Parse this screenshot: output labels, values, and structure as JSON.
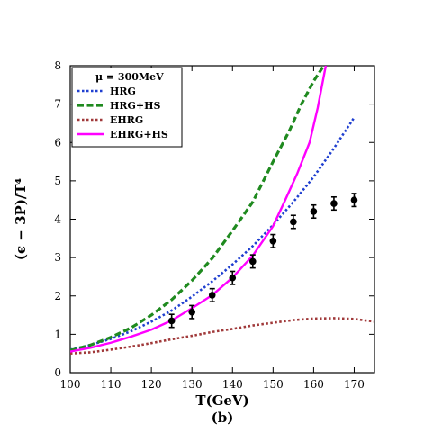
{
  "chart_data": {
    "type": "line",
    "xlabel": "T(GeV)",
    "ylabel": "(ϵ − 3P)/T⁴",
    "panel_label": "(b)",
    "legend_header": "μ = 300MeV",
    "xlim": [
      100,
      175
    ],
    "ylim": [
      0,
      8
    ],
    "x_ticks": [
      100,
      110,
      120,
      130,
      140,
      150,
      160,
      170
    ],
    "y_ticks": [
      0,
      1,
      2,
      3,
      4,
      5,
      6,
      7,
      8
    ],
    "legend_position": "top-left",
    "series": [
      {
        "name": "HRG",
        "style": "dotted",
        "color": "#1f3fd0",
        "x": [
          100,
          105,
          110,
          115,
          120,
          125,
          130,
          135,
          140,
          145,
          150,
          155,
          160,
          165,
          170
        ],
        "y": [
          0.6,
          0.72,
          0.88,
          1.08,
          1.33,
          1.62,
          1.98,
          2.38,
          2.82,
          3.3,
          3.85,
          4.45,
          5.1,
          5.85,
          6.65
        ]
      },
      {
        "name": "HRG+HS",
        "style": "dashed",
        "color": "#1f8a1f",
        "x": [
          100,
          105,
          110,
          115,
          120,
          125,
          130,
          135,
          140,
          145,
          150,
          154,
          157,
          160,
          162.5
        ],
        "y": [
          0.58,
          0.72,
          0.92,
          1.17,
          1.5,
          1.9,
          2.4,
          2.98,
          3.7,
          4.45,
          5.5,
          6.3,
          7.0,
          7.6,
          8.0
        ]
      },
      {
        "name": "EHRG",
        "style": "dotted",
        "color": "#a0393a",
        "x": [
          100,
          105,
          110,
          115,
          120,
          125,
          130,
          135,
          140,
          145,
          150,
          155,
          160,
          165,
          170,
          175
        ],
        "y": [
          0.5,
          0.53,
          0.6,
          0.68,
          0.77,
          0.87,
          0.96,
          1.06,
          1.14,
          1.23,
          1.3,
          1.37,
          1.41,
          1.42,
          1.4,
          1.33
        ]
      },
      {
        "name": "EHRG+HS",
        "style": "solid",
        "color": "#ff00ff",
        "x": [
          100,
          105,
          110,
          115,
          120,
          125,
          130,
          135,
          140,
          145,
          150,
          153,
          156,
          159,
          161,
          163
        ],
        "y": [
          0.55,
          0.65,
          0.78,
          0.94,
          1.12,
          1.36,
          1.68,
          2.02,
          2.48,
          3.05,
          3.82,
          4.5,
          5.2,
          6.0,
          6.9,
          8.0
        ]
      }
    ],
    "data_points": {
      "color": "#000000",
      "x": [
        125,
        130,
        135,
        140,
        145,
        150,
        155,
        160,
        165,
        170
      ],
      "y": [
        1.35,
        1.58,
        2.02,
        2.47,
        2.9,
        3.43,
        3.93,
        4.2,
        4.41,
        4.5
      ],
      "yerr": [
        0.17,
        0.17,
        0.17,
        0.17,
        0.17,
        0.17,
        0.17,
        0.17,
        0.17,
        0.17
      ]
    }
  }
}
